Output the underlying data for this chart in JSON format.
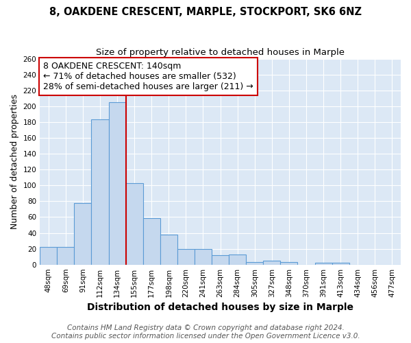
{
  "title": "8, OAKDENE CRESCENT, MARPLE, STOCKPORT, SK6 6NZ",
  "subtitle": "Size of property relative to detached houses in Marple",
  "xlabel": "Distribution of detached houses by size in Marple",
  "ylabel": "Number of detached properties",
  "bar_labels": [
    "48sqm",
    "69sqm",
    "91sqm",
    "112sqm",
    "134sqm",
    "155sqm",
    "177sqm",
    "198sqm",
    "220sqm",
    "241sqm",
    "263sqm",
    "284sqm",
    "305sqm",
    "327sqm",
    "348sqm",
    "370sqm",
    "391sqm",
    "413sqm",
    "434sqm",
    "456sqm",
    "477sqm"
  ],
  "bar_heights": [
    22,
    22,
    78,
    183,
    205,
    103,
    59,
    38,
    20,
    20,
    12,
    13,
    3,
    5,
    3,
    0,
    2,
    2,
    0,
    0,
    0
  ],
  "bar_color": "#c5d8ee",
  "bar_edge_color": "#5b9bd5",
  "bar_linewidth": 0.8,
  "vline_x_index": 4,
  "vline_color": "#cc0000",
  "vline_linewidth": 1.5,
  "annotation_line1": "8 OAKDENE CRESCENT: 140sqm",
  "annotation_line2": "← 71% of detached houses are smaller (532)",
  "annotation_line3": "28% of semi-detached houses are larger (211) →",
  "annotation_box_color": "#ffffff",
  "annotation_box_edge_color": "#cc0000",
  "ylim": [
    0,
    260
  ],
  "yticks": [
    0,
    20,
    40,
    60,
    80,
    100,
    120,
    140,
    160,
    180,
    200,
    220,
    240,
    260
  ],
  "footer_line1": "Contains HM Land Registry data © Crown copyright and database right 2024.",
  "footer_line2": "Contains public sector information licensed under the Open Government Licence v3.0.",
  "background_color": "#ffffff",
  "plot_bg_color": "#dce8f5",
  "grid_color": "#ffffff",
  "title_fontsize": 10.5,
  "subtitle_fontsize": 9.5,
  "tick_fontsize": 7.5,
  "ylabel_fontsize": 9,
  "xlabel_fontsize": 10,
  "annotation_fontsize": 9,
  "footer_fontsize": 7.5
}
